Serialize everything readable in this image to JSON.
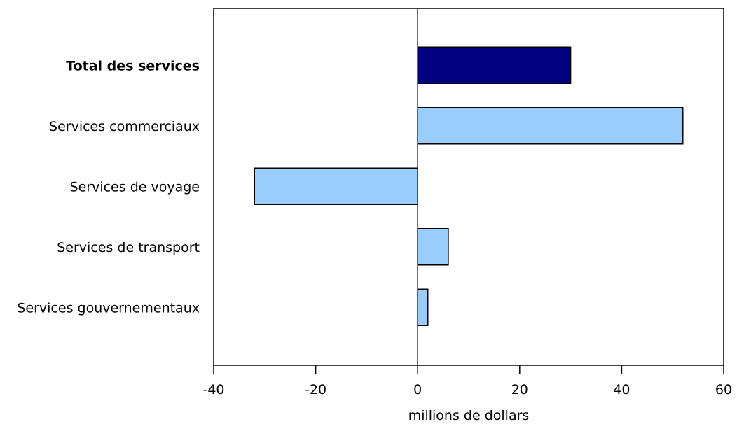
{
  "chart_data": {
    "type": "bar",
    "orientation": "horizontal",
    "title": "",
    "xlabel": "millions de dollars",
    "ylabel": "",
    "xlim": [
      -40,
      60
    ],
    "x_ticks": [
      -40,
      -20,
      0,
      20,
      40,
      60
    ],
    "grid": false,
    "categories": [
      "Total des services",
      "Services commerciaux",
      "Services de voyage",
      "Services de transport",
      "Services gouvernementaux"
    ],
    "values": [
      30,
      52,
      -32,
      6,
      2
    ],
    "emphasized_category": "Total des services",
    "colors": {
      "total_bar": "#000080",
      "component_bar": "#99ccff",
      "outline": "#000000"
    }
  }
}
